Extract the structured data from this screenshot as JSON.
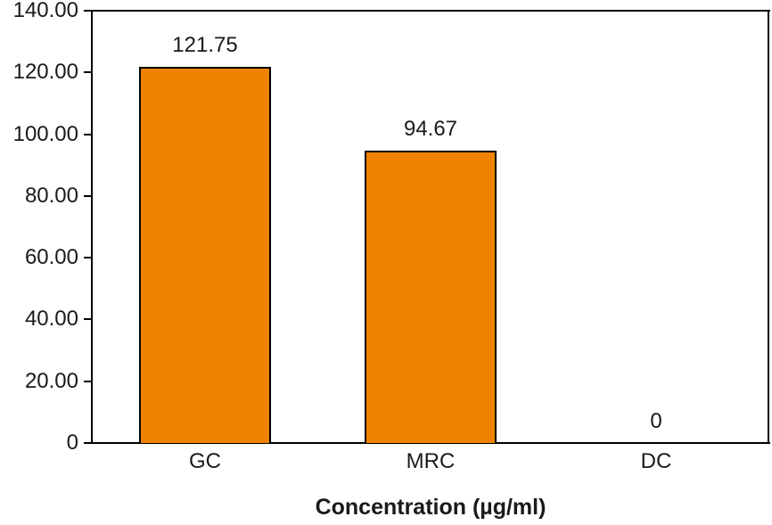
{
  "chart_data": {
    "type": "bar",
    "title": "",
    "xlabel": "Concentration (µg/ml)",
    "ylabel": "",
    "categories": [
      "GC",
      "MRC",
      "DC"
    ],
    "values": [
      121.75,
      94.67,
      0
    ],
    "value_labels": [
      "121.75",
      "94.67",
      "0"
    ],
    "ylim": [
      0,
      140
    ],
    "ytick_values": [
      140,
      120,
      100,
      80,
      60,
      40,
      20,
      0
    ],
    "ytick_labels": [
      "140.00",
      "120.00",
      "100.00",
      "80.00",
      "60.00",
      "40.00",
      "20.00",
      "0"
    ],
    "grid": false,
    "legend_position": "none",
    "colors": {
      "bar_fill": "#F08200",
      "bar_border": "#000000",
      "axis": "#000000",
      "text": "#1A1A1A",
      "background": "#FFFFFF"
    }
  }
}
